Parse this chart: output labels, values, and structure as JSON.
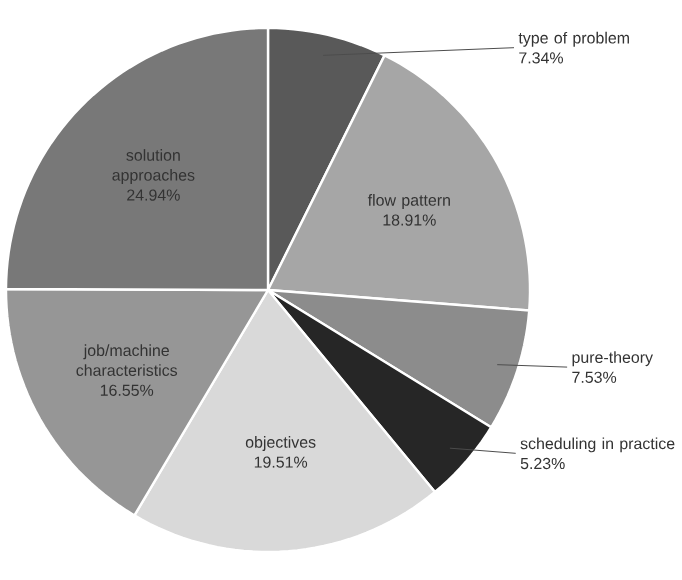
{
  "chart_data": {
    "type": "pie",
    "categories": [
      "type of problem",
      "flow pattern",
      "pure-theory",
      "scheduling in practice",
      "objectives",
      "job/machine characteristics",
      "solution approaches"
    ],
    "values": [
      7.34,
      18.91,
      7.53,
      5.23,
      19.51,
      16.55,
      24.94
    ],
    "value_labels": [
      "7.34%",
      "18.91%",
      "7.53%",
      "5.23%",
      "19.51%",
      "16.55%",
      "24.94%"
    ],
    "colors": [
      "#595959",
      "#a6a6a6",
      "#8c8c8c",
      "#262626",
      "#d9d9d9",
      "#969696",
      "#787878"
    ]
  }
}
